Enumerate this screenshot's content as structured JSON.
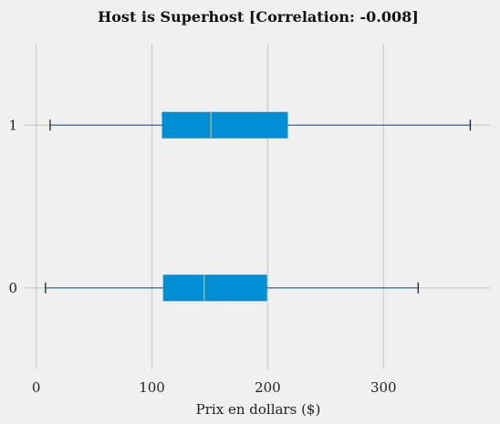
{
  "chart_data": {
    "type": "boxplot",
    "orientation": "horizontal",
    "title": "Host is Superhost  [Correlation: -0.008]",
    "xlabel": "Prix en dollars ($)",
    "ylabel": "",
    "xlim": [
      -10,
      392
    ],
    "x_ticks": [
      "0",
      "100",
      "200",
      "300"
    ],
    "grid": true,
    "categories": [
      "0",
      "1"
    ],
    "boxes": [
      {
        "category": "0",
        "whisker_low": 8,
        "q1": 110,
        "median": 145,
        "q3": 199,
        "whisker_high": 330
      },
      {
        "category": "1",
        "whisker_low": 12,
        "q1": 109,
        "median": 151,
        "q3": 217,
        "whisker_high": 375
      }
    ],
    "colors": {
      "box_fill": "#008fd5",
      "whisker": "#1f77b4",
      "median": "#e5ae38",
      "cap": "#222222",
      "grid": "#cbcbcb",
      "background": "#f0f0f0"
    }
  }
}
